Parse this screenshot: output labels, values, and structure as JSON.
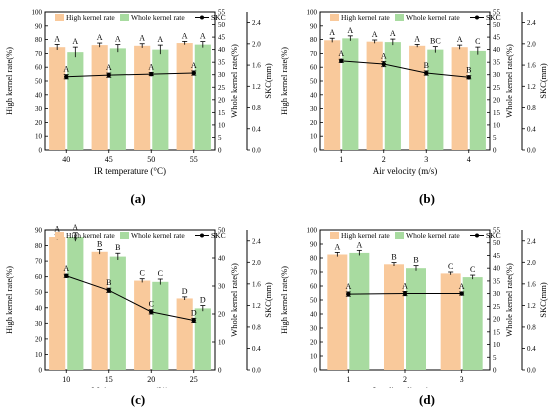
{
  "colors": {
    "high_bar": "#f9c99b",
    "whole_bar": "#a8dba0",
    "line": "#000000",
    "axis": "#000000",
    "right_axis": "#a8dba0"
  },
  "legend": {
    "high": "High kernel rate",
    "whole": "Whole kernel rate",
    "skc": "SKC"
  },
  "chart_data": [
    {
      "type": "bar",
      "panel_label": "(a)",
      "categories": [
        "40",
        "45",
        "50",
        "55"
      ],
      "xlabel": "IR temperature (°C)",
      "ylabel": "High kernel rate(%)",
      "ylabel_right_inner": "Whole kernel rate(%)",
      "ylabel_right_outer": "SKC(mm)",
      "left_ylim": [
        0,
        100
      ],
      "left_ticks": [
        "0",
        "10",
        "20",
        "30",
        "40",
        "50",
        "60",
        "70",
        "80",
        "90",
        "100"
      ],
      "inner_ylim": [
        0,
        55
      ],
      "inner_ticks": [
        "0",
        "5",
        "10",
        "15",
        "20",
        "25",
        "30",
        "35",
        "40",
        "45",
        "50",
        "55"
      ],
      "outer_ylim": [
        0,
        2.6
      ],
      "outer_ticks": [
        "0.0",
        "0.4",
        "0.8",
        "1.2",
        "1.6",
        "2.0",
        "2.4"
      ],
      "series": [
        {
          "name": "High kernel rate",
          "axis": "left",
          "values": [
            74.5,
            76,
            75.5,
            77.5
          ],
          "errors": [
            2,
            1.5,
            1.5,
            1.2
          ],
          "letters": [
            "A",
            "A",
            "A",
            "A"
          ]
        },
        {
          "name": "Whole kernel rate",
          "axis": "inner",
          "values": [
            39,
            40.5,
            40,
            42
          ],
          "errors": [
            2,
            1.5,
            1.8,
            1.2
          ],
          "letters": [
            "A",
            "A",
            "A",
            "A"
          ]
        },
        {
          "name": "SKC",
          "axis": "outer",
          "values": [
            1.38,
            1.41,
            1.43,
            1.45
          ],
          "errors": [
            0.04,
            0.04,
            0.03,
            0.04
          ],
          "letters": [
            "A",
            "A",
            "A",
            "A"
          ]
        }
      ]
    },
    {
      "type": "bar",
      "panel_label": "(b)",
      "categories": [
        "1",
        "2",
        "3",
        "4"
      ],
      "xlabel": "Air velocity (m/s)",
      "ylabel": "High kernel rate(%)",
      "ylabel_right_inner": "Whole kernel rate(%)",
      "ylabel_right_outer": "SKC(mm)",
      "left_ylim": [
        0,
        100
      ],
      "left_ticks": [
        "0",
        "10",
        "20",
        "30",
        "40",
        "50",
        "60",
        "70",
        "80",
        "90",
        "100"
      ],
      "inner_ylim": [
        0,
        55
      ],
      "inner_ticks": [
        "0",
        "5",
        "10",
        "15",
        "20",
        "25",
        "30",
        "35",
        "40",
        "45",
        "50",
        "55"
      ],
      "outer_ylim": [
        0,
        2.6
      ],
      "outer_ticks": [
        "0.0",
        "0.4",
        "0.8",
        "1.2",
        "1.6",
        "2.0",
        "2.4"
      ],
      "series": [
        {
          "name": "High kernel rate",
          "axis": "left",
          "values": [
            79.5,
            78.5,
            75.5,
            74.5
          ],
          "errors": [
            1.5,
            1.2,
            1.0,
            1.5
          ],
          "letters": [
            "A",
            "A",
            "A",
            "A"
          ]
        },
        {
          "name": "Whole kernel rate",
          "axis": "inner",
          "values": [
            44.5,
            43,
            40,
            39.5
          ],
          "errors": [
            1.0,
            1.2,
            1.2,
            1.5
          ],
          "letters": [
            "A",
            "A",
            "BC",
            "C"
          ]
        },
        {
          "name": "SKC",
          "axis": "outer",
          "values": [
            1.68,
            1.62,
            1.45,
            1.37
          ],
          "errors": [
            0.03,
            0.05,
            0.04,
            0.03
          ],
          "letters": [
            "A",
            "A",
            "B",
            "B"
          ]
        }
      ]
    },
    {
      "type": "bar",
      "panel_label": "(c)",
      "categories": [
        "10",
        "15",
        "20",
        "25"
      ],
      "xlabel": "Moisture content (%)",
      "ylabel": "High kernel rate(%)",
      "ylabel_right_inner": "Whole kernel rate(%)",
      "ylabel_right_outer": "SKC(mm)",
      "left_ylim": [
        0,
        90
      ],
      "left_ticks": [
        "0",
        "10",
        "20",
        "30",
        "40",
        "50",
        "60",
        "70",
        "80",
        "90"
      ],
      "inner_ylim": [
        0,
        50
      ],
      "inner_ticks": [
        "0",
        "10",
        "20",
        "30",
        "40",
        "50"
      ],
      "outer_ylim": [
        0,
        2.6
      ],
      "outer_ticks": [
        "0.0",
        "0.4",
        "0.8",
        "1.2",
        "1.6",
        "2.0",
        "2.4"
      ],
      "series": [
        {
          "name": "High kernel rate",
          "axis": "left",
          "values": [
            85.5,
            76,
            57.5,
            46
          ],
          "errors": [
            1.5,
            1.5,
            1.2,
            1.0
          ],
          "letters": [
            "A",
            "B",
            "C",
            "D"
          ]
        },
        {
          "name": "Whole kernel rate",
          "axis": "inner",
          "values": [
            47.5,
            40.5,
            31.5,
            22
          ],
          "errors": [
            1.5,
            1.2,
            1.0,
            1.0
          ],
          "letters": [
            "A",
            "B",
            "C",
            "D"
          ]
        },
        {
          "name": "SKC",
          "axis": "outer",
          "values": [
            1.75,
            1.48,
            1.08,
            0.92
          ],
          "errors": [
            0.03,
            0.04,
            0.04,
            0.04
          ],
          "letters": [
            "A",
            "B",
            "C",
            "D"
          ]
        }
      ]
    },
    {
      "type": "bar",
      "panel_label": "(d)",
      "categories": [
        "1",
        "2",
        "3"
      ],
      "xlabel": "Loading direction",
      "ylabel": "High kernel rate(%)",
      "ylabel_right_inner": "Whole kernel rate(%)",
      "ylabel_right_outer": "SKC(mm)",
      "left_ylim": [
        0,
        100
      ],
      "left_ticks": [
        "0",
        "10",
        "20",
        "30",
        "40",
        "50",
        "60",
        "70",
        "80",
        "90",
        "100"
      ],
      "inner_ylim": [
        0,
        55
      ],
      "inner_ticks": [
        "0",
        "5",
        "10",
        "15",
        "20",
        "25",
        "30",
        "35",
        "40",
        "45",
        "50",
        "55"
      ],
      "outer_ylim": [
        0,
        2.6
      ],
      "outer_ticks": [
        "0.0",
        "0.4",
        "0.8",
        "1.2",
        "1.6",
        "2.0",
        "2.4"
      ],
      "series": [
        {
          "name": "High kernel rate",
          "axis": "left",
          "values": [
            82.5,
            75.5,
            69
          ],
          "errors": [
            1.5,
            1.2,
            1.0
          ],
          "letters": [
            "A",
            "B",
            "C"
          ]
        },
        {
          "name": "Whole kernel rate",
          "axis": "inner",
          "values": [
            46,
            40,
            36.5
          ],
          "errors": [
            1.0,
            1.0,
            0.8
          ],
          "letters": [
            "A",
            "B",
            "C"
          ]
        },
        {
          "name": "SKC",
          "axis": "outer",
          "values": [
            1.41,
            1.42,
            1.42
          ],
          "errors": [
            0.04,
            0.04,
            0.03
          ],
          "letters": [
            "A",
            "A",
            "A"
          ]
        }
      ]
    }
  ]
}
